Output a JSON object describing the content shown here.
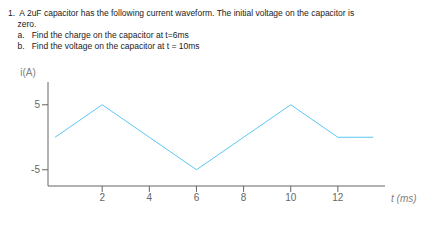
{
  "chart_data": {
    "type": "line",
    "title": "1.  A 2uF capacitor has the following current waveform. The initial voltage on the capacitor is",
    "annotations": [
      "    zero.",
      "    a.   Find the charge on the capacitor at t=6ms",
      "    b.   Find the voltage on the capacitor at t = 10ms"
    ],
    "x_label": "t (ms)",
    "y_label": "i(A)",
    "x": [
      0,
      2,
      4,
      6,
      8,
      10,
      12,
      13.5
    ],
    "values": [
      0,
      5,
      0,
      -5,
      0,
      5,
      0,
      0
    ],
    "color": "#5bc8f5",
    "xlim": [
      -0.3,
      14.0
    ],
    "ylim": [
      -7.5,
      8.5
    ],
    "xticks": [
      2,
      4,
      6,
      8,
      10,
      12
    ],
    "yticks": [
      -5,
      5
    ],
    "grid": false
  }
}
